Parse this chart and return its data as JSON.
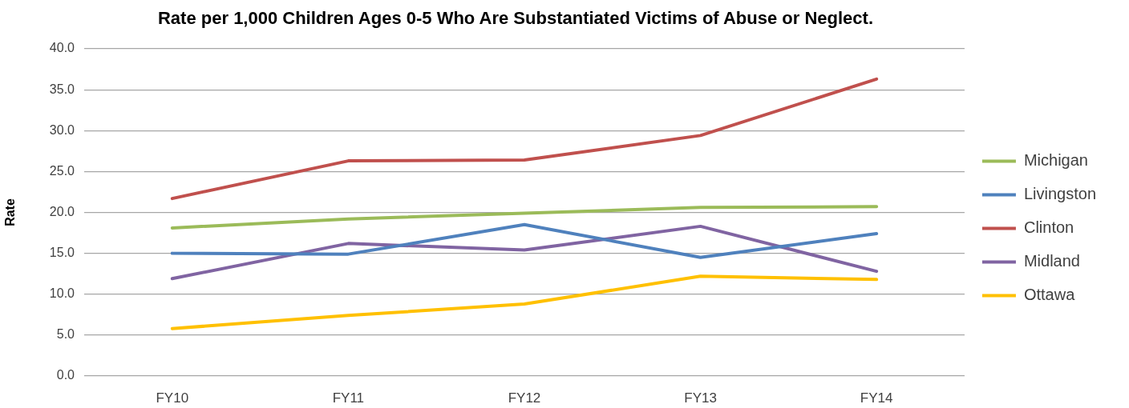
{
  "chart_data": {
    "type": "line",
    "title": "Rate per 1,000 Children Ages 0-5 Who Are Substantiated Victims of Abuse or Neglect.",
    "ylabel": "Rate",
    "categories": [
      "FY10",
      "FY11",
      "FY12",
      "FY13",
      "FY14"
    ],
    "series": [
      {
        "name": "Michigan",
        "color": "#9bbb59",
        "values": [
          18.1,
          19.2,
          19.9,
          20.6,
          20.7
        ]
      },
      {
        "name": "Livingston",
        "color": "#4f81bd",
        "values": [
          15.0,
          14.9,
          18.5,
          14.5,
          17.4
        ]
      },
      {
        "name": "Clinton",
        "color": "#c0504d",
        "values": [
          21.7,
          26.3,
          26.4,
          29.4,
          36.3
        ]
      },
      {
        "name": "Midland",
        "color": "#8064a2",
        "values": [
          11.9,
          16.2,
          15.4,
          18.3,
          12.8
        ]
      },
      {
        "name": "Ottawa",
        "color": "#ffc000",
        "values": [
          5.8,
          7.4,
          8.8,
          12.2,
          11.8
        ]
      }
    ],
    "ylim": [
      0,
      40
    ],
    "yticks": [
      {
        "value": 0,
        "label": "0.0"
      },
      {
        "value": 5,
        "label": "5.0"
      },
      {
        "value": 10,
        "label": "10.0"
      },
      {
        "value": 15,
        "label": "15.0"
      },
      {
        "value": 20,
        "label": "20.0"
      },
      {
        "value": 25,
        "label": "25.0"
      },
      {
        "value": 30,
        "label": "30.0"
      },
      {
        "value": 35,
        "label": "35.0"
      },
      {
        "value": 40,
        "label": "40.0"
      }
    ],
    "grid": "y",
    "legend": "right",
    "marker": "none"
  }
}
